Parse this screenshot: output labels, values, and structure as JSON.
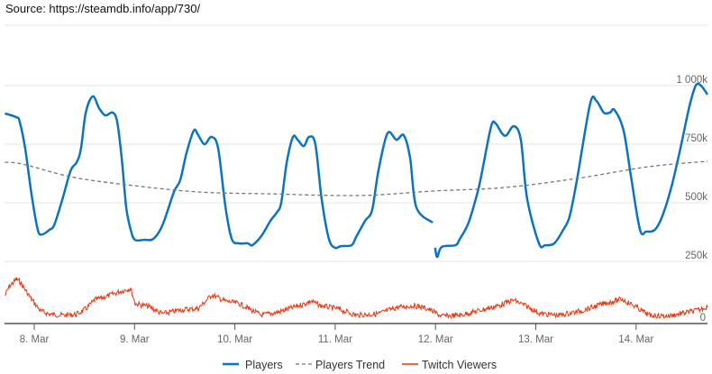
{
  "source": "Source: https://steamdb.info/app/730/",
  "chart_data": {
    "type": "line",
    "title": "",
    "legend_position": "bottom",
    "grid": true,
    "x_ticks": [
      "8. Mar",
      "9. Mar",
      "10. Mar",
      "11. Mar",
      "12. Mar",
      "13. Mar",
      "14. Mar"
    ],
    "y_ticks_players": [
      "250k",
      "500k",
      "750k",
      "1 000k"
    ],
    "players_ylim_k": [
      0,
      1250
    ],
    "twitch_axis_label": "0",
    "twitch_ylim_relative": [
      0,
      100
    ],
    "colors": {
      "players": "#0b73c3",
      "trend": "#777777",
      "twitch": "#e8340c"
    },
    "series": [
      {
        "name": "Players",
        "unit": "k",
        "points": [
          [
            "7 Mar 17:00",
            881
          ],
          [
            "7 Mar 19:45",
            865
          ],
          [
            "7 Mar 20:30",
            846
          ],
          [
            "7 Mar 21:50",
            731
          ],
          [
            "7 Mar 23:20",
            538
          ],
          [
            "8 Mar 00:50",
            385
          ],
          [
            "8 Mar 01:55",
            365
          ],
          [
            "8 Mar 03:40",
            385
          ],
          [
            "8 Mar 04:45",
            404
          ],
          [
            "8 Mar 06:30",
            500
          ],
          [
            "8 Mar 08:40",
            635
          ],
          [
            "8 Mar 10:10",
            673
          ],
          [
            "8 Mar 11:10",
            731
          ],
          [
            "8 Mar 12:20",
            885
          ],
          [
            "8 Mar 14:00",
            954
          ],
          [
            "8 Mar 15:30",
            904
          ],
          [
            "8 Mar 17:00",
            873
          ],
          [
            "8 Mar 18:45",
            885
          ],
          [
            "8 Mar 19:50",
            846
          ],
          [
            "8 Mar 20:55",
            692
          ],
          [
            "8 Mar 22:00",
            481
          ],
          [
            "8 Mar 23:05",
            385
          ],
          [
            "9 Mar 00:05",
            342
          ],
          [
            "9 Mar 02:20",
            342
          ],
          [
            "9 Mar 04:30",
            346
          ],
          [
            "9 Mar 06:40",
            404
          ],
          [
            "9 Mar 09:25",
            546
          ],
          [
            "9 Mar 10:55",
            596
          ],
          [
            "9 Mar 12:25",
            712
          ],
          [
            "9 Mar 14:10",
            808
          ],
          [
            "9 Mar 15:15",
            788
          ],
          [
            "9 Mar 16:45",
            750
          ],
          [
            "9 Mar 18:25",
            781
          ],
          [
            "9 Mar 20:00",
            731
          ],
          [
            "9 Mar 21:45",
            481
          ],
          [
            "9 Mar 23:15",
            346
          ],
          [
            "10 Mar 00:55",
            327
          ],
          [
            "10 Mar 03:05",
            327
          ],
          [
            "10 Mar 04:10",
            319
          ],
          [
            "10 Mar 06:20",
            358
          ],
          [
            "10 Mar 08:30",
            423
          ],
          [
            "10 Mar 10:00",
            458
          ],
          [
            "10 Mar 11:05",
            500
          ],
          [
            "10 Mar 12:25",
            673
          ],
          [
            "10 Mar 13:55",
            781
          ],
          [
            "10 Mar 15:00",
            769
          ],
          [
            "10 Mar 16:30",
            742
          ],
          [
            "10 Mar 17:45",
            781
          ],
          [
            "10 Mar 19:15",
            750
          ],
          [
            "10 Mar 20:45",
            519
          ],
          [
            "10 Mar 22:30",
            346
          ],
          [
            "11 Mar 00:00",
            308
          ],
          [
            "11 Mar 01:20",
            315
          ],
          [
            "11 Mar 03:55",
            319
          ],
          [
            "11 Mar 05:00",
            354
          ],
          [
            "11 Mar 07:10",
            423
          ],
          [
            "11 Mar 08:50",
            469
          ],
          [
            "11 Mar 10:20",
            635
          ],
          [
            "11 Mar 12:30",
            796
          ],
          [
            "11 Mar 14:40",
            769
          ],
          [
            "11 Mar 16:25",
            788
          ],
          [
            "11 Mar 17:55",
            692
          ],
          [
            "11 Mar 19:25",
            481
          ],
          [
            "11 Mar 23:20",
            415
          ],
          null,
          [
            "11 Mar 23:55",
            308
          ],
          [
            "12 Mar 00:25",
            269
          ],
          [
            "12 Mar 01:30",
            312
          ],
          [
            "12 Mar 04:45",
            319
          ],
          [
            "12 Mar 05:50",
            346
          ],
          [
            "12 Mar 07:55",
            415
          ],
          [
            "12 Mar 10:05",
            546
          ],
          [
            "12 Mar 11:10",
            635
          ],
          [
            "12 Mar 13:20",
            827
          ],
          [
            "12 Mar 14:25",
            838
          ],
          [
            "12 Mar 15:55",
            796
          ],
          [
            "12 Mar 17:00",
            788
          ],
          [
            "12 Mar 18:45",
            827
          ],
          [
            "12 Mar 20:25",
            769
          ],
          [
            "12 Mar 21:55",
            519
          ],
          [
            "13 Mar 00:45",
            327
          ],
          [
            "13 Mar 02:15",
            319
          ],
          [
            "13 Mar 04:25",
            327
          ],
          [
            "13 Mar 06:35",
            385
          ],
          [
            "13 Mar 08:05",
            442
          ],
          [
            "13 Mar 09:50",
            596
          ],
          [
            "13 Mar 13:00",
            923
          ],
          [
            "13 Mar 14:30",
            935
          ],
          [
            "13 Mar 16:15",
            885
          ],
          [
            "13 Mar 17:45",
            885
          ],
          [
            "13 Mar 18:50",
            896
          ],
          [
            "13 Mar 21:00",
            808
          ],
          [
            "13 Mar 22:45",
            615
          ],
          [
            "14 Mar 00:55",
            385
          ],
          [
            "14 Mar 02:25",
            377
          ],
          [
            "14 Mar 04:30",
            385
          ],
          [
            "14 Mar 06:15",
            442
          ],
          [
            "14 Mar 08:25",
            565
          ],
          [
            "14 Mar 10:35",
            731
          ],
          [
            "14 Mar 12:45",
            911
          ],
          [
            "14 Mar 14:15",
            1000
          ],
          [
            "14 Mar 15:30",
            1000
          ],
          [
            "14 Mar 17:05",
            962
          ]
        ]
      },
      {
        "name": "Players Trend",
        "unit": "k",
        "points": [
          [
            "7 Mar 17:00",
            673
          ],
          [
            "7 Mar 21:15",
            665
          ],
          [
            "8 Mar 09:00",
            610
          ],
          [
            "8 Mar 22:00",
            577
          ],
          [
            "9 Mar 15:15",
            546
          ],
          [
            "10 Mar 08:30",
            538
          ],
          [
            "11 Mar 06:00",
            531
          ],
          [
            "11 Mar 23:20",
            550
          ],
          [
            "12 Mar 16:30",
            565
          ],
          [
            "13 Mar 09:50",
            604
          ],
          [
            "14 Mar 03:00",
            654
          ],
          [
            "14 Mar 17:05",
            677
          ]
        ]
      },
      {
        "name": "Twitch Viewers",
        "unit": "relative",
        "points": [
          [
            "7 Mar 17:00",
            57
          ],
          [
            "7 Mar 18:00",
            76
          ],
          [
            "7 Mar 19:45",
            91
          ],
          [
            "7 Mar 20:30",
            87
          ],
          [
            "7 Mar 21:50",
            69
          ],
          [
            "7 Mar 23:20",
            50
          ],
          [
            "8 Mar 01:30",
            26
          ],
          [
            "8 Mar 03:40",
            19
          ],
          [
            "8 Mar 06:55",
            17
          ],
          [
            "8 Mar 10:10",
            19
          ],
          [
            "8 Mar 12:20",
            30
          ],
          [
            "8 Mar 14:25",
            48
          ],
          [
            "8 Mar 17:40",
            57
          ],
          [
            "8 Mar 20:55",
            67
          ],
          [
            "8 Mar 23:05",
            72
          ],
          [
            "9 Mar 00:10",
            41
          ],
          [
            "9 Mar 03:25",
            35
          ],
          [
            "9 Mar 06:40",
            20
          ],
          [
            "9 Mar 11:00",
            28
          ],
          [
            "9 Mar 15:15",
            31
          ],
          [
            "9 Mar 18:30",
            59
          ],
          [
            "9 Mar 21:45",
            46
          ],
          [
            "10 Mar 01:00",
            41
          ],
          [
            "10 Mar 06:20",
            17
          ],
          [
            "10 Mar 10:40",
            24
          ],
          [
            "10 Mar 16:05",
            39
          ],
          [
            "10 Mar 18:15",
            46
          ],
          [
            "10 Mar 20:25",
            37
          ],
          [
            "11 Mar 00:40",
            30
          ],
          [
            "11 Mar 05:00",
            17
          ],
          [
            "11 Mar 10:20",
            20
          ],
          [
            "11 Mar 14:40",
            33
          ],
          [
            "11 Mar 19:00",
            37
          ],
          [
            "11 Mar 22:15",
            30
          ],
          [
            "12 Mar 01:30",
            15
          ],
          [
            "12 Mar 05:50",
            17
          ],
          [
            "12 Mar 10:05",
            26
          ],
          [
            "12 Mar 14:25",
            35
          ],
          [
            "12 Mar 18:40",
            48
          ],
          [
            "12 Mar 21:55",
            35
          ],
          [
            "13 Mar 01:10",
            20
          ],
          [
            "13 Mar 05:30",
            17
          ],
          [
            "13 Mar 10:55",
            26
          ],
          [
            "13 Mar 16:15",
            41
          ],
          [
            "13 Mar 20:35",
            50
          ],
          [
            "13 Mar 23:50",
            35
          ],
          [
            "14 Mar 03:05",
            17
          ],
          [
            "14 Mar 07:25",
            15
          ],
          [
            "14 Mar 11:45",
            22
          ],
          [
            "14 Mar 15:00",
            28
          ],
          [
            "14 Mar 17:05",
            35
          ]
        ]
      }
    ]
  }
}
